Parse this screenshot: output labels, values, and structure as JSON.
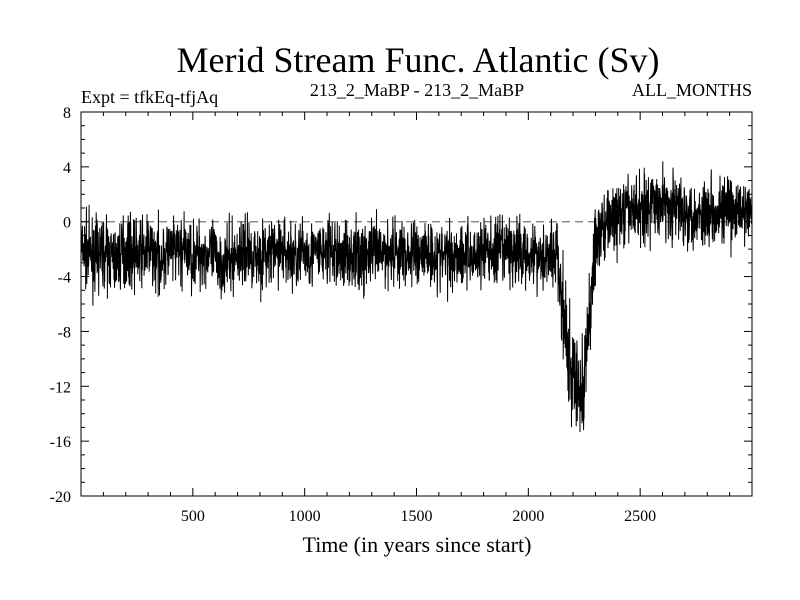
{
  "header": {
    "title": "Merid Stream Func. Atlantic (Sv)",
    "left_label": "Expt = tfkEq-tfjAq",
    "center_label": "213_2_MaBP - 213_2_MaBP",
    "right_label": "ALL_MONTHS"
  },
  "chart_data": {
    "type": "line",
    "title": "Merid Stream Func. Atlantic (Sv)",
    "xlabel": "Time (in years since start)",
    "ylabel": "",
    "xlim": [
      0,
      3000
    ],
    "ylim": [
      -20,
      8
    ],
    "x_ticks": [
      500,
      1000,
      1500,
      2000,
      2500
    ],
    "x_tick_labels": [
      "500",
      "1000",
      "1500",
      "2000",
      "2500"
    ],
    "y_ticks": [
      8,
      4,
      0,
      -4,
      -8,
      -12,
      -16,
      -20
    ],
    "y_tick_labels": [
      "8",
      "4",
      "0",
      "-4",
      "-8",
      "-12",
      "-16",
      "-20"
    ],
    "reference_line": {
      "y": 0,
      "style": "dashed"
    },
    "grid": false,
    "series": [
      {
        "color": "#000000",
        "x": [
          0,
          50,
          100,
          150,
          200,
          250,
          300,
          350,
          400,
          450,
          500,
          550,
          600,
          650,
          700,
          750,
          800,
          850,
          900,
          950,
          1000,
          1050,
          1100,
          1150,
          1200,
          1250,
          1300,
          1350,
          1400,
          1450,
          1500,
          1550,
          1600,
          1650,
          1700,
          1750,
          1800,
          1850,
          1900,
          1950,
          2000,
          2050,
          2100,
          2130,
          2150,
          2170,
          2190,
          2210,
          2230,
          2250,
          2270,
          2290,
          2310,
          2330,
          2350,
          2400,
          2450,
          2500,
          2550,
          2600,
          2650,
          2700,
          2750,
          2800,
          2850,
          2900,
          2950,
          3000
        ],
        "values": [
          -2.0,
          -2.5,
          -2.2,
          -2.8,
          -2.0,
          -2.4,
          -2.1,
          -2.6,
          -2.3,
          -2.0,
          -2.5,
          -2.2,
          -2.7,
          -3.0,
          -2.4,
          -2.1,
          -2.5,
          -2.3,
          -2.0,
          -2.6,
          -2.2,
          -2.4,
          -2.1,
          -2.5,
          -2.3,
          -2.7,
          -2.2,
          -2.4,
          -2.0,
          -2.5,
          -2.3,
          -2.1,
          -2.6,
          -2.4,
          -2.2,
          -2.5,
          -2.1,
          -2.3,
          -2.0,
          -2.4,
          -2.2,
          -2.5,
          -2.3,
          -2.5,
          -6.0,
          -9.0,
          -11.0,
          -12.0,
          -12.5,
          -11.5,
          -8.0,
          -3.0,
          -1.0,
          -0.5,
          0.0,
          0.3,
          0.8,
          1.0,
          1.2,
          1.5,
          1.0,
          0.8,
          0.5,
          0.7,
          1.0,
          0.6,
          0.8,
          0.5
        ]
      }
    ]
  }
}
